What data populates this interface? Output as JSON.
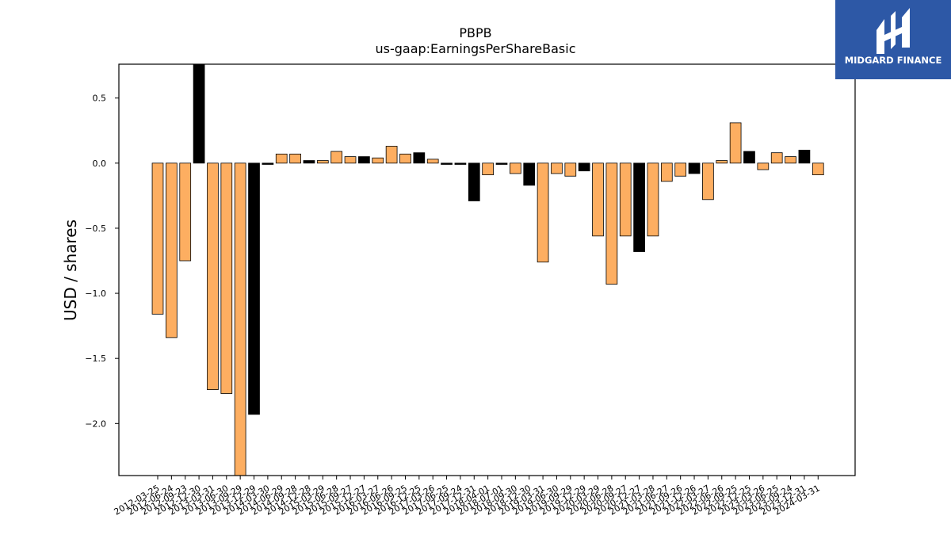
{
  "title": "PBPB",
  "subtitle": "us-gaap:EarningsPerShareBasic",
  "logo": {
    "text": "MIDGARD FINANCE",
    "bg_color": "#2d58a6",
    "icon": "midgard-logo-icon"
  },
  "colors": {
    "orange": "#fdae61",
    "black": "#000000"
  },
  "chart_data": {
    "type": "bar",
    "title": "PBPB",
    "subtitle": "us-gaap:EarningsPerShareBasic",
    "xlabel": "",
    "ylabel": "USD / shares",
    "ylim": [
      -2.4,
      0.76
    ],
    "yticks": [
      0.5,
      0.0,
      -0.5,
      -1.0,
      -1.5,
      -2.0
    ],
    "ytick_labels": [
      "0.5",
      "0.0",
      "−0.5",
      "−1.0",
      "−1.5",
      "−2.0"
    ],
    "grid": false,
    "categories": [
      "2012-03-25",
      "2012-06-24",
      "2012-09-23",
      "2012-12-30",
      "2013-03-31",
      "2013-06-30",
      "2013-09-29",
      "2013-12-29",
      "2014-03-30",
      "2014-06-29",
      "2014-09-28",
      "2014-12-28",
      "2015-03-29",
      "2015-06-28",
      "2015-09-27",
      "2015-12-27",
      "2016-03-27",
      "2016-06-26",
      "2016-09-25",
      "2016-12-25",
      "2017-03-26",
      "2017-06-25",
      "2017-09-24",
      "2017-12-31",
      "2018-04-01",
      "2018-07-01",
      "2018-09-30",
      "2018-12-30",
      "2019-03-31",
      "2019-06-30",
      "2019-09-29",
      "2019-12-29",
      "2020-03-29",
      "2020-06-28",
      "2020-09-27",
      "2020-12-27",
      "2021-03-28",
      "2021-06-27",
      "2021-09-26",
      "2021-12-26",
      "2022-03-27",
      "2022-06-26",
      "2022-09-25",
      "2022-12-25",
      "2023-03-26",
      "2023-06-25",
      "2023-09-24",
      "2023-12-31",
      "2024-03-31"
    ],
    "values": [
      -1.16,
      -1.34,
      -0.75,
      0.8,
      -1.74,
      -1.77,
      -2.44,
      -1.93,
      -0.01,
      0.07,
      0.07,
      0.02,
      0.02,
      0.09,
      0.05,
      0.05,
      0.04,
      0.13,
      0.07,
      0.08,
      0.03,
      -0.01,
      -0.01,
      -0.29,
      -0.09,
      -0.01,
      -0.08,
      -0.17,
      -0.76,
      -0.08,
      -0.1,
      -0.06,
      -0.56,
      -0.93,
      -0.56,
      -0.68,
      -0.56,
      -0.14,
      -0.1,
      -0.08,
      -0.28,
      0.02,
      0.31,
      0.09,
      -0.05,
      0.08,
      0.05,
      0.1,
      -0.09
    ],
    "bar_colors": [
      "orange",
      "orange",
      "orange",
      "black",
      "orange",
      "orange",
      "orange",
      "black",
      "black",
      "orange",
      "orange",
      "black",
      "orange",
      "orange",
      "orange",
      "black",
      "orange",
      "orange",
      "orange",
      "black",
      "orange",
      "black",
      "black",
      "black",
      "orange",
      "black",
      "orange",
      "black",
      "orange",
      "orange",
      "orange",
      "black",
      "orange",
      "orange",
      "orange",
      "black",
      "orange",
      "orange",
      "orange",
      "black",
      "orange",
      "orange",
      "orange",
      "black",
      "orange",
      "orange",
      "orange",
      "black",
      "orange"
    ]
  }
}
